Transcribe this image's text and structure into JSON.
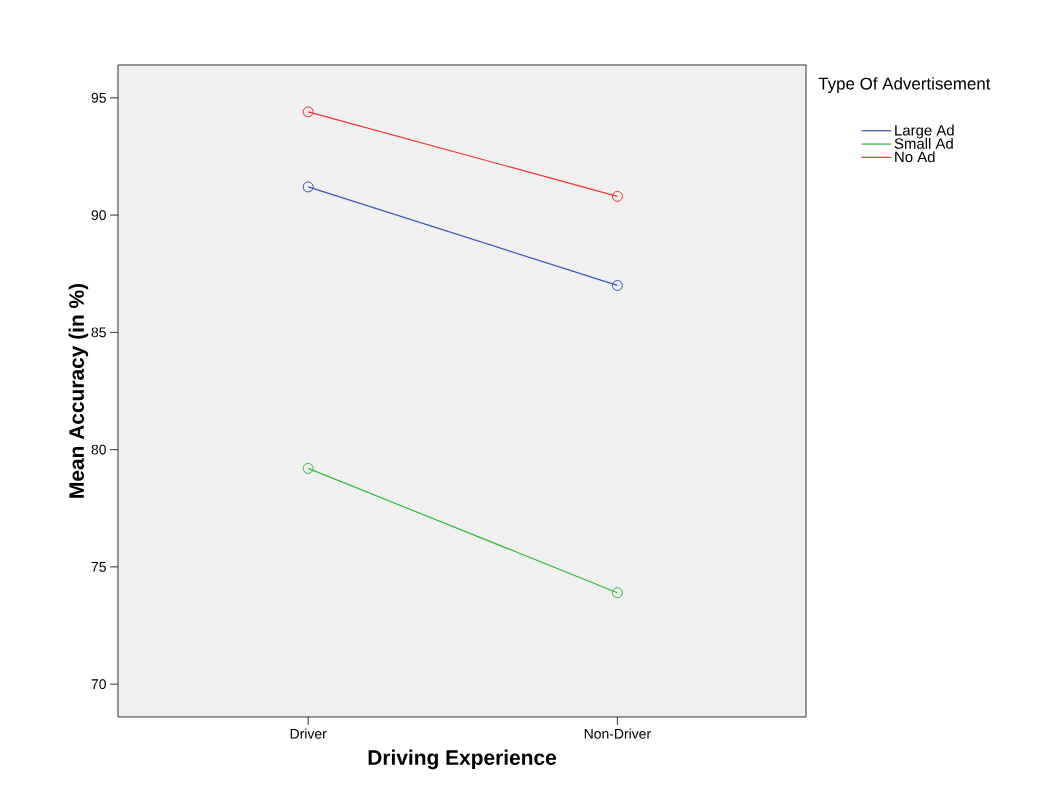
{
  "chart_data": {
    "type": "line",
    "xlabel": "Driving Experience",
    "ylabel": "Mean Accuracy (in %)",
    "legend_title": "Type Of Advertisement",
    "categories": [
      "Driver",
      "Non-Driver"
    ],
    "series": [
      {
        "name": "Large Ad",
        "color": "#3a55b4",
        "values": [
          91.2,
          87.0
        ]
      },
      {
        "name": "Small Ad",
        "color": "#2ebb3c",
        "values": [
          79.2,
          73.9
        ]
      },
      {
        "name": "No Ad",
        "color": "#f03030",
        "values": [
          94.4,
          90.8
        ]
      }
    ],
    "ylim": [
      68.6,
      96.4
    ],
    "yticks": [
      70,
      75,
      80,
      85,
      90,
      95
    ],
    "grid": false,
    "legend": "top right",
    "marker": "circle",
    "line_style": "solid"
  }
}
